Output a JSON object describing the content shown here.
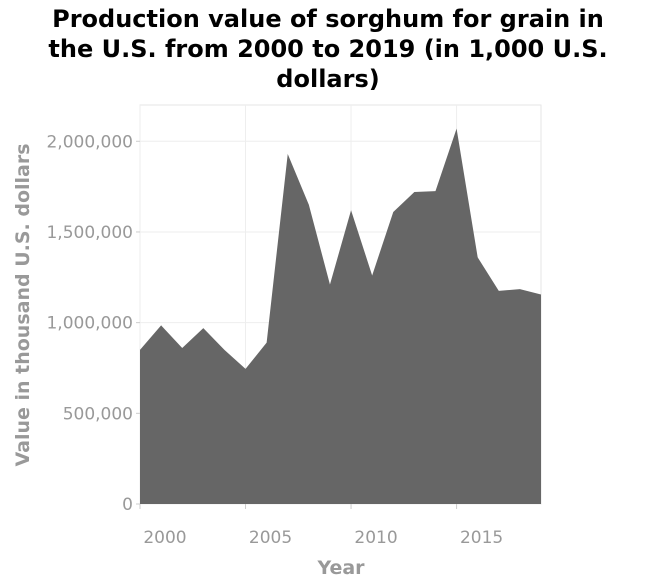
{
  "chart_data": {
    "type": "area",
    "title_lines": [
      "Production value of sorghum for grain in",
      "the U.S. from 2000 to 2019 (in 1,000 U.S.",
      "dollars)"
    ],
    "xlabel": "Year",
    "ylabel": "Value in thousand U.S. dollars",
    "x": [
      2000,
      2001,
      2002,
      2003,
      2004,
      2005,
      2006,
      2007,
      2008,
      2009,
      2010,
      2011,
      2012,
      2013,
      2014,
      2015,
      2016,
      2017,
      2018,
      2019
    ],
    "values": [
      850000,
      985000,
      860000,
      970000,
      850000,
      745000,
      890000,
      1930000,
      1650000,
      1210000,
      1620000,
      1260000,
      1610000,
      1720000,
      1725000,
      2070000,
      1360000,
      1175000,
      1185000,
      1155000
    ],
    "xlim": [
      2000,
      2019
    ],
    "ylim": [
      0,
      2200000
    ],
    "x_ticks": [
      2000,
      2005,
      2010,
      2015
    ],
    "x_tick_labels": [
      "2000",
      "2005",
      "2010",
      "2015"
    ],
    "y_ticks": [
      0,
      500000,
      1000000,
      1500000,
      2000000
    ],
    "y_tick_labels": [
      "0",
      "500,000",
      "1,000,000",
      "1,500,000",
      "2,000,000"
    ],
    "grid": true,
    "colors": {
      "area": "#666666",
      "grid": "#eeeeee",
      "text": "#999999"
    }
  }
}
